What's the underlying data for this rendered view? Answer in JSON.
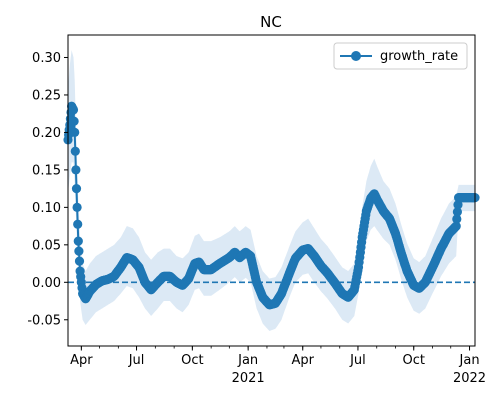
{
  "chart_data": {
    "type": "line",
    "title": "NC",
    "xlabel": "",
    "ylabel": "",
    "x_range": [
      "2020-03-10",
      "2022-01-10"
    ],
    "ylim": [
      -0.085,
      0.33
    ],
    "grid": false,
    "legend_position": "top-right",
    "x_ticks": [
      {
        "date": "2020-04-01",
        "label": "Apr",
        "sublabel": ""
      },
      {
        "date": "2020-07-01",
        "label": "Jul",
        "sublabel": ""
      },
      {
        "date": "2020-10-01",
        "label": "Oct",
        "sublabel": ""
      },
      {
        "date": "2021-01-01",
        "label": "Jan",
        "sublabel": "2021"
      },
      {
        "date": "2021-04-01",
        "label": "Apr",
        "sublabel": ""
      },
      {
        "date": "2021-07-01",
        "label": "Jul",
        "sublabel": ""
      },
      {
        "date": "2021-10-01",
        "label": "Oct",
        "sublabel": ""
      },
      {
        "date": "2022-01-01",
        "label": "Jan",
        "sublabel": "2022"
      }
    ],
    "y_ticks": [
      "-0.05",
      "0.00",
      "0.05",
      "0.10",
      "0.15",
      "0.20",
      "0.25",
      "0.30"
    ],
    "reference_line": {
      "y": 0,
      "style": "dashed"
    },
    "series": [
      {
        "name": "growth_rate",
        "color": "#1f77b4",
        "band_color": "#dce9f5",
        "points": [
          {
            "x": "2020-03-10",
            "y": 0.19,
            "lo": 0.12,
            "hi": 0.26
          },
          {
            "x": "2020-03-13",
            "y": 0.21,
            "lo": 0.14,
            "hi": 0.29
          },
          {
            "x": "2020-03-16",
            "y": 0.235,
            "lo": 0.16,
            "hi": 0.31
          },
          {
            "x": "2020-03-19",
            "y": 0.23,
            "lo": 0.16,
            "hi": 0.3
          },
          {
            "x": "2020-03-21",
            "y": 0.2,
            "lo": 0.13,
            "hi": 0.27
          },
          {
            "x": "2020-03-23",
            "y": 0.15,
            "lo": 0.09,
            "hi": 0.21
          },
          {
            "x": "2020-03-25",
            "y": 0.1,
            "lo": 0.05,
            "hi": 0.16
          },
          {
            "x": "2020-03-27",
            "y": 0.055,
            "lo": 0.01,
            "hi": 0.11
          },
          {
            "x": "2020-03-30",
            "y": 0.015,
            "lo": -0.025,
            "hi": 0.06
          },
          {
            "x": "2020-04-03",
            "y": -0.015,
            "lo": -0.05,
            "hi": 0.025
          },
          {
            "x": "2020-04-08",
            "y": -0.022,
            "lo": -0.057,
            "hi": 0.015
          },
          {
            "x": "2020-04-15",
            "y": -0.012,
            "lo": -0.05,
            "hi": 0.025
          },
          {
            "x": "2020-04-25",
            "y": -0.003,
            "lo": -0.04,
            "hi": 0.035
          },
          {
            "x": "2020-05-05",
            "y": 0.002,
            "lo": -0.035,
            "hi": 0.04
          },
          {
            "x": "2020-05-15",
            "y": 0.004,
            "lo": -0.03,
            "hi": 0.045
          },
          {
            "x": "2020-05-25",
            "y": 0.008,
            "lo": -0.025,
            "hi": 0.05
          },
          {
            "x": "2020-06-05",
            "y": 0.02,
            "lo": -0.015,
            "hi": 0.06
          },
          {
            "x": "2020-06-15",
            "y": 0.033,
            "lo": -0.005,
            "hi": 0.075
          },
          {
            "x": "2020-06-25",
            "y": 0.03,
            "lo": -0.008,
            "hi": 0.072
          },
          {
            "x": "2020-07-05",
            "y": 0.02,
            "lo": -0.02,
            "hi": 0.06
          },
          {
            "x": "2020-07-15",
            "y": 0.0,
            "lo": -0.035,
            "hi": 0.04
          },
          {
            "x": "2020-07-25",
            "y": -0.01,
            "lo": -0.045,
            "hi": 0.03
          },
          {
            "x": "2020-08-05",
            "y": 0.0,
            "lo": -0.035,
            "hi": 0.04
          },
          {
            "x": "2020-08-15",
            "y": 0.008,
            "lo": -0.025,
            "hi": 0.045
          },
          {
            "x": "2020-08-25",
            "y": 0.008,
            "lo": -0.025,
            "hi": 0.045
          },
          {
            "x": "2020-09-05",
            "y": 0.0,
            "lo": -0.035,
            "hi": 0.035
          },
          {
            "x": "2020-09-15",
            "y": -0.004,
            "lo": -0.04,
            "hi": 0.032
          },
          {
            "x": "2020-09-25",
            "y": 0.005,
            "lo": -0.03,
            "hi": 0.04
          },
          {
            "x": "2020-10-05",
            "y": 0.025,
            "lo": -0.01,
            "hi": 0.062
          },
          {
            "x": "2020-10-12",
            "y": 0.027,
            "lo": -0.008,
            "hi": 0.065
          },
          {
            "x": "2020-10-20",
            "y": 0.017,
            "lo": -0.018,
            "hi": 0.055
          },
          {
            "x": "2020-11-01",
            "y": 0.017,
            "lo": -0.018,
            "hi": 0.055
          },
          {
            "x": "2020-11-15",
            "y": 0.025,
            "lo": -0.01,
            "hi": 0.06
          },
          {
            "x": "2020-12-01",
            "y": 0.033,
            "lo": 0.0,
            "hi": 0.068
          },
          {
            "x": "2020-12-10",
            "y": 0.04,
            "lo": 0.007,
            "hi": 0.075
          },
          {
            "x": "2020-12-18",
            "y": 0.033,
            "lo": 0.0,
            "hi": 0.068
          },
          {
            "x": "2020-12-28",
            "y": 0.04,
            "lo": 0.006,
            "hi": 0.075
          },
          {
            "x": "2021-01-05",
            "y": 0.035,
            "lo": 0.0,
            "hi": 0.07
          },
          {
            "x": "2021-01-15",
            "y": 0.0,
            "lo": -0.035,
            "hi": 0.035
          },
          {
            "x": "2021-01-25",
            "y": -0.02,
            "lo": -0.055,
            "hi": 0.015
          },
          {
            "x": "2021-02-05",
            "y": -0.03,
            "lo": -0.065,
            "hi": 0.005
          },
          {
            "x": "2021-02-15",
            "y": -0.028,
            "lo": -0.062,
            "hi": 0.007
          },
          {
            "x": "2021-02-25",
            "y": -0.015,
            "lo": -0.05,
            "hi": 0.02
          },
          {
            "x": "2021-03-10",
            "y": 0.012,
            "lo": -0.02,
            "hi": 0.048
          },
          {
            "x": "2021-03-20",
            "y": 0.032,
            "lo": 0.0,
            "hi": 0.068
          },
          {
            "x": "2021-04-01",
            "y": 0.043,
            "lo": 0.01,
            "hi": 0.08
          },
          {
            "x": "2021-04-10",
            "y": 0.045,
            "lo": 0.012,
            "hi": 0.085
          },
          {
            "x": "2021-04-20",
            "y": 0.035,
            "lo": 0.0,
            "hi": 0.072
          },
          {
            "x": "2021-05-01",
            "y": 0.022,
            "lo": -0.012,
            "hi": 0.058
          },
          {
            "x": "2021-05-12",
            "y": 0.012,
            "lo": -0.022,
            "hi": 0.048
          },
          {
            "x": "2021-05-25",
            "y": -0.002,
            "lo": -0.036,
            "hi": 0.033
          },
          {
            "x": "2021-06-05",
            "y": -0.015,
            "lo": -0.05,
            "hi": 0.02
          },
          {
            "x": "2021-06-15",
            "y": -0.02,
            "lo": -0.055,
            "hi": 0.015
          },
          {
            "x": "2021-06-25",
            "y": -0.01,
            "lo": -0.045,
            "hi": 0.025
          },
          {
            "x": "2021-07-02",
            "y": 0.02,
            "lo": -0.015,
            "hi": 0.06
          },
          {
            "x": "2021-07-08",
            "y": 0.06,
            "lo": 0.025,
            "hi": 0.1
          },
          {
            "x": "2021-07-15",
            "y": 0.095,
            "lo": 0.055,
            "hi": 0.135
          },
          {
            "x": "2021-07-22",
            "y": 0.112,
            "lo": 0.07,
            "hi": 0.155
          },
          {
            "x": "2021-07-28",
            "y": 0.118,
            "lo": 0.075,
            "hi": 0.165
          },
          {
            "x": "2021-08-03",
            "y": 0.108,
            "lo": 0.068,
            "hi": 0.152
          },
          {
            "x": "2021-08-12",
            "y": 0.095,
            "lo": 0.058,
            "hi": 0.135
          },
          {
            "x": "2021-08-22",
            "y": 0.085,
            "lo": 0.05,
            "hi": 0.125
          },
          {
            "x": "2021-09-01",
            "y": 0.065,
            "lo": 0.03,
            "hi": 0.105
          },
          {
            "x": "2021-09-10",
            "y": 0.04,
            "lo": 0.005,
            "hi": 0.078
          },
          {
            "x": "2021-09-20",
            "y": 0.015,
            "lo": -0.02,
            "hi": 0.052
          },
          {
            "x": "2021-10-01",
            "y": -0.004,
            "lo": -0.038,
            "hi": 0.032
          },
          {
            "x": "2021-10-10",
            "y": -0.008,
            "lo": -0.042,
            "hi": 0.027
          },
          {
            "x": "2021-10-20",
            "y": 0.0,
            "lo": -0.035,
            "hi": 0.035
          },
          {
            "x": "2021-11-01",
            "y": 0.02,
            "lo": -0.015,
            "hi": 0.058
          },
          {
            "x": "2021-11-15",
            "y": 0.045,
            "lo": 0.008,
            "hi": 0.085
          },
          {
            "x": "2021-11-28",
            "y": 0.065,
            "lo": 0.025,
            "hi": 0.105
          },
          {
            "x": "2021-12-10",
            "y": 0.075,
            "lo": 0.035,
            "hi": 0.115
          },
          {
            "x": "2021-12-14",
            "y": 0.113,
            "lo": 0.095,
            "hi": 0.13
          },
          {
            "x": "2022-01-10",
            "y": 0.113,
            "lo": 0.095,
            "hi": 0.13
          }
        ]
      }
    ]
  }
}
